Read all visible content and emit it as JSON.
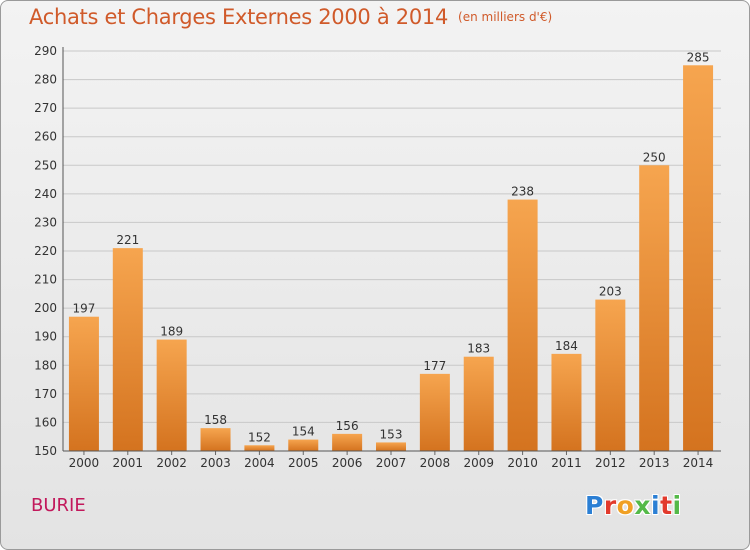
{
  "header": {
    "title": "Achats et Charges Externes 2000 à 2014",
    "unit": "(en milliers d'€)"
  },
  "footer": {
    "place": "BURIE",
    "logo_letters": [
      "P",
      "r",
      "o",
      "x",
      "i",
      "t",
      "i"
    ],
    "logo_colors": [
      "#2b7fd4",
      "#e23a2c",
      "#f0a024",
      "#54b948",
      "#2b7fd4",
      "#e23a2c",
      "#54b948"
    ]
  },
  "colors": {
    "bar_top": "#f6a54f",
    "bar_bottom": "#d4731f",
    "title": "#d05a2a",
    "place": "#c2185b",
    "grid": "#c8c8c8"
  },
  "chart_data": {
    "type": "bar",
    "title": "Achats et Charges Externes 2000 à 2014",
    "subtitle": "(en milliers d'€)",
    "categories": [
      "2000",
      "2001",
      "2002",
      "2003",
      "2004",
      "2005",
      "2006",
      "2007",
      "2008",
      "2009",
      "2010",
      "2011",
      "2012",
      "2013",
      "2014"
    ],
    "values": [
      197,
      221,
      189,
      158,
      152,
      154,
      156,
      153,
      177,
      183,
      238,
      184,
      203,
      250,
      285
    ],
    "ylim": [
      150,
      290
    ],
    "yticks": [
      150,
      160,
      170,
      180,
      190,
      200,
      210,
      220,
      230,
      240,
      250,
      260,
      270,
      280,
      290
    ],
    "grid": "horizontal",
    "xlabel": "",
    "ylabel": ""
  }
}
